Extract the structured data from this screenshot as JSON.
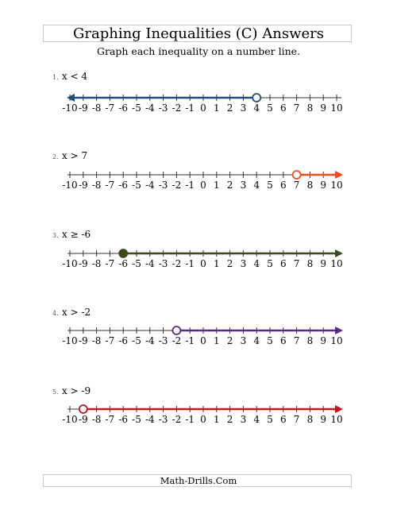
{
  "header": {
    "title": "Graphing Inequalities (C) Answers",
    "subtitle": "Graph each inequality on a number line."
  },
  "number_line": {
    "min": -10,
    "max": 10,
    "labels": [
      "-10",
      "-9",
      "-8",
      "-7",
      "-6",
      "-5",
      "-4",
      "-3",
      "-2",
      "-1",
      "0",
      "1",
      "2",
      "3",
      "4",
      "5",
      "6",
      "7",
      "8",
      "9",
      "10"
    ]
  },
  "problems": [
    {
      "number": "1.",
      "inequality": "x < 4",
      "value": 4,
      "direction": "left",
      "closed": false,
      "color": "#1f4e79"
    },
    {
      "number": "2.",
      "inequality": "x > 7",
      "value": 7,
      "direction": "right",
      "closed": false,
      "color": "#f04e23"
    },
    {
      "number": "3.",
      "inequality": "x ≥ -6",
      "value": -6,
      "direction": "right",
      "closed": true,
      "color": "#3b4a1c"
    },
    {
      "number": "4.",
      "inequality": "x > -2",
      "value": -2,
      "direction": "right",
      "closed": false,
      "color": "#5b2c83"
    },
    {
      "number": "5.",
      "inequality": "x > -9",
      "value": -9,
      "direction": "right",
      "closed": false,
      "color": "#c0161c"
    }
  ],
  "footer": {
    "text": "Math-Drills.Com"
  }
}
